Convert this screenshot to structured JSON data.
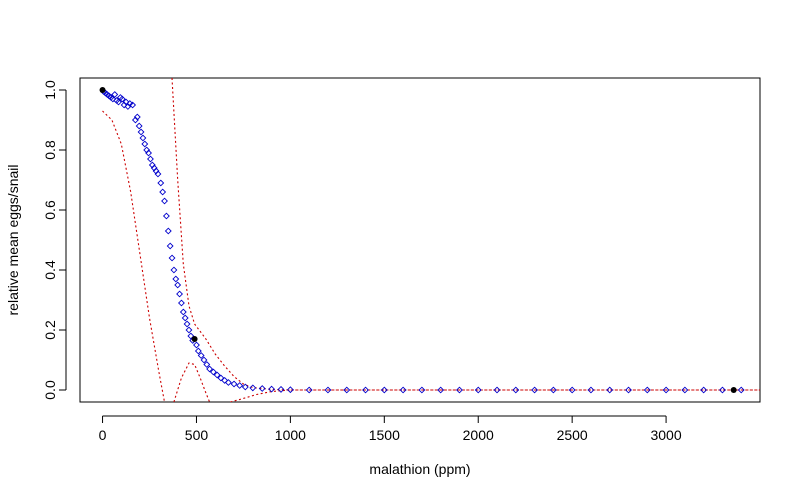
{
  "chart_data": {
    "type": "scatter",
    "title": "",
    "xlabel": "malathion (ppm)",
    "ylabel": "relative mean eggs/snail",
    "xlim": [
      -120,
      3500
    ],
    "ylim": [
      -0.04,
      1.04
    ],
    "xticks": [
      "0",
      "500",
      "1000",
      "1500",
      "2000",
      "2500",
      "3000"
    ],
    "xtick_values": [
      0,
      500,
      1000,
      1500,
      2000,
      2500,
      3000
    ],
    "yticks": [
      "0.0",
      "0.2",
      "0.4",
      "0.6",
      "0.8",
      "1.0"
    ],
    "ytick_values": [
      0,
      0.2,
      0.4,
      0.6,
      0.8,
      1.0
    ],
    "grid": false,
    "legend": "none",
    "series": [
      {
        "role": "observed",
        "marker": "filled-circle",
        "color": "#000000",
        "points": [
          [
            0,
            1.0
          ],
          [
            490,
            0.17
          ],
          [
            3360,
            0.0
          ]
        ]
      },
      {
        "role": "simulated",
        "marker": "open-diamond",
        "color": "#0000cc",
        "points": [
          [
            5,
            0.995
          ],
          [
            15,
            0.99
          ],
          [
            25,
            0.985
          ],
          [
            35,
            0.98
          ],
          [
            45,
            0.975
          ],
          [
            55,
            0.97
          ],
          [
            65,
            0.985
          ],
          [
            75,
            0.965
          ],
          [
            85,
            0.96
          ],
          [
            95,
            0.975
          ],
          [
            105,
            0.97
          ],
          [
            115,
            0.95
          ],
          [
            125,
            0.96
          ],
          [
            135,
            0.945
          ],
          [
            145,
            0.955
          ],
          [
            160,
            0.95
          ],
          [
            175,
            0.9
          ],
          [
            185,
            0.91
          ],
          [
            195,
            0.88
          ],
          [
            205,
            0.86
          ],
          [
            215,
            0.84
          ],
          [
            225,
            0.82
          ],
          [
            235,
            0.8
          ],
          [
            245,
            0.79
          ],
          [
            255,
            0.77
          ],
          [
            265,
            0.75
          ],
          [
            275,
            0.74
          ],
          [
            285,
            0.73
          ],
          [
            295,
            0.72
          ],
          [
            310,
            0.69
          ],
          [
            320,
            0.66
          ],
          [
            330,
            0.63
          ],
          [
            340,
            0.58
          ],
          [
            350,
            0.53
          ],
          [
            360,
            0.48
          ],
          [
            370,
            0.44
          ],
          [
            380,
            0.4
          ],
          [
            390,
            0.37
          ],
          [
            400,
            0.35
          ],
          [
            410,
            0.32
          ],
          [
            420,
            0.29
          ],
          [
            430,
            0.26
          ],
          [
            440,
            0.24
          ],
          [
            450,
            0.22
          ],
          [
            460,
            0.2
          ],
          [
            470,
            0.18
          ],
          [
            480,
            0.165
          ],
          [
            500,
            0.15
          ],
          [
            510,
            0.13
          ],
          [
            525,
            0.115
          ],
          [
            540,
            0.1
          ],
          [
            555,
            0.085
          ],
          [
            570,
            0.07
          ],
          [
            590,
            0.06
          ],
          [
            610,
            0.05
          ],
          [
            630,
            0.04
          ],
          [
            650,
            0.032
          ],
          [
            670,
            0.025
          ],
          [
            700,
            0.02
          ],
          [
            730,
            0.015
          ],
          [
            760,
            0.01
          ],
          [
            800,
            0.007
          ],
          [
            850,
            0.005
          ],
          [
            900,
            0.003
          ],
          [
            950,
            0.002
          ],
          [
            1000,
            0.001
          ],
          [
            1100,
            0.0
          ],
          [
            1200,
            0.0
          ],
          [
            1300,
            0.0
          ],
          [
            1400,
            0.0
          ],
          [
            1500,
            0.0
          ],
          [
            1600,
            0.0
          ],
          [
            1700,
            0.0
          ],
          [
            1800,
            0.0
          ],
          [
            1900,
            0.0
          ],
          [
            2000,
            0.0
          ],
          [
            2100,
            0.0
          ],
          [
            2200,
            0.0
          ],
          [
            2300,
            0.0
          ],
          [
            2400,
            0.0
          ],
          [
            2500,
            0.0
          ],
          [
            2600,
            0.0
          ],
          [
            2700,
            0.0
          ],
          [
            2800,
            0.0
          ],
          [
            2900,
            0.0
          ],
          [
            3000,
            0.0
          ],
          [
            3100,
            0.0
          ],
          [
            3200,
            0.0
          ],
          [
            3300,
            0.0
          ],
          [
            3400,
            0.0
          ]
        ]
      },
      {
        "role": "lower-bound",
        "line": "dotted",
        "color": "#cc0000",
        "points": [
          [
            0,
            0.93
          ],
          [
            50,
            0.9
          ],
          [
            100,
            0.82
          ],
          [
            150,
            0.66
          ],
          [
            200,
            0.45
          ],
          [
            250,
            0.24
          ],
          [
            300,
            0.06
          ],
          [
            330,
            -0.04
          ]
        ]
      },
      {
        "role": "upper-bound",
        "line": "dotted",
        "color": "#cc0000",
        "points": [
          [
            370,
            1.04
          ],
          [
            400,
            0.7
          ],
          [
            430,
            0.42
          ],
          [
            460,
            0.28
          ],
          [
            490,
            0.22
          ],
          [
            550,
            0.17
          ],
          [
            600,
            0.12
          ],
          [
            650,
            0.08
          ],
          [
            700,
            0.045
          ],
          [
            750,
            0.02
          ],
          [
            800,
            0.008
          ],
          [
            900,
            0.002
          ],
          [
            1000,
            0.0
          ],
          [
            3500,
            0.0
          ]
        ]
      },
      {
        "role": "lower-bound-hump",
        "line": "dotted",
        "color": "#cc0000",
        "points": [
          [
            380,
            -0.04
          ],
          [
            420,
            0.04
          ],
          [
            460,
            0.09
          ],
          [
            490,
            0.085
          ],
          [
            520,
            0.04
          ],
          [
            550,
            -0.01
          ],
          [
            570,
            -0.04
          ]
        ]
      },
      {
        "role": "lower-bound-tail",
        "line": "dotted",
        "color": "#cc0000",
        "points": [
          [
            680,
            -0.04
          ],
          [
            740,
            -0.03
          ],
          [
            820,
            -0.015
          ],
          [
            900,
            -0.005
          ],
          [
            1000,
            0.0
          ],
          [
            3500,
            0.0
          ]
        ]
      }
    ]
  }
}
